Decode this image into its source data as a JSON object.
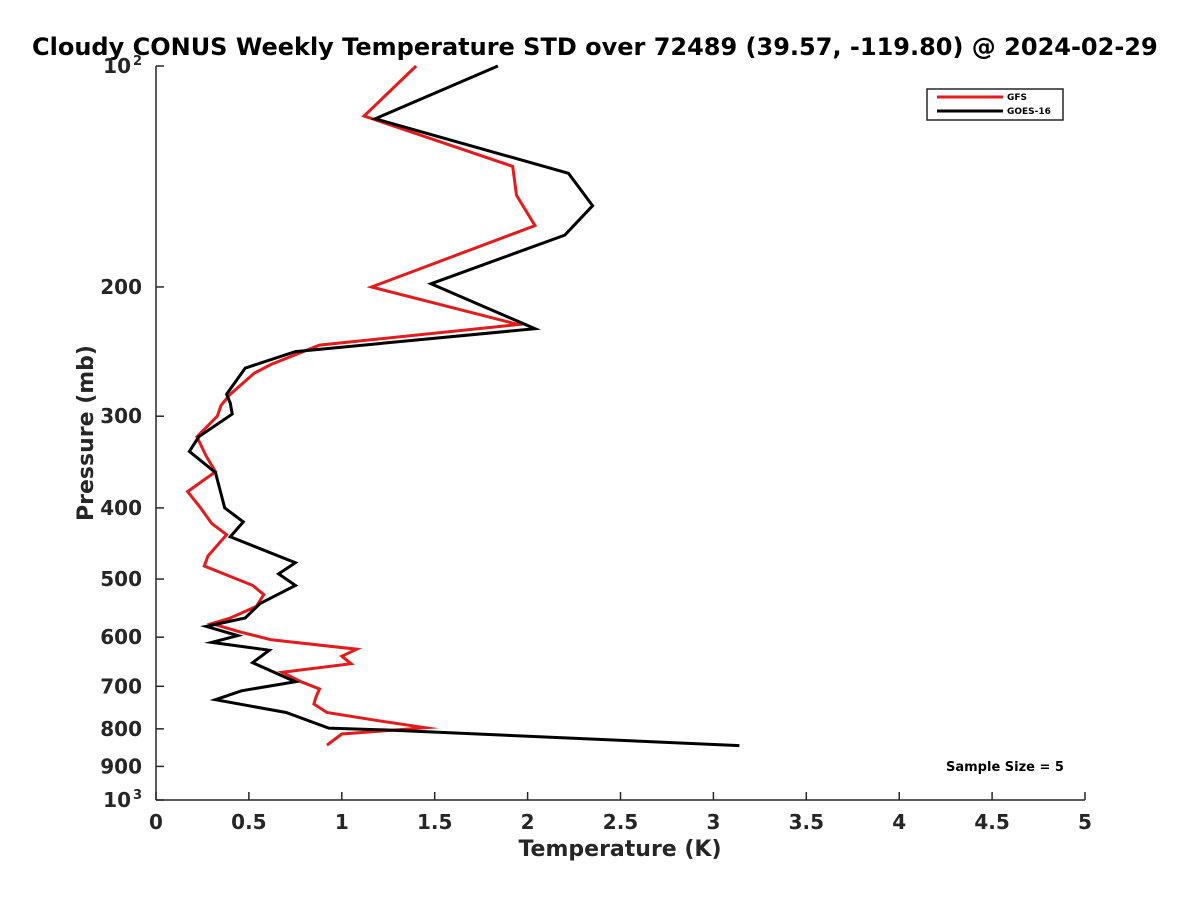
{
  "chart_data": {
    "type": "line",
    "title": "Cloudy CONUS Weekly Temperature STD over 72489 (39.57, -119.80) @ 2024-02-29",
    "xlabel": "Temperature (K)",
    "ylabel": "Pressure (mb)",
    "xlim": [
      0,
      5
    ],
    "ylim": [
      100,
      1000
    ],
    "y_scale": "log",
    "y_direction": "reversed",
    "grid": false,
    "legend_position": "top-right",
    "annotation": "Sample Size = 5",
    "x_ticks": [
      {
        "value": 0,
        "label": "0"
      },
      {
        "value": 0.5,
        "label": "0.5"
      },
      {
        "value": 1,
        "label": "1"
      },
      {
        "value": 1.5,
        "label": "1.5"
      },
      {
        "value": 2,
        "label": "2"
      },
      {
        "value": 2.5,
        "label": "2.5"
      },
      {
        "value": 3,
        "label": "3"
      },
      {
        "value": 3.5,
        "label": "3.5"
      },
      {
        "value": 4,
        "label": "4"
      },
      {
        "value": 4.5,
        "label": "4.5"
      },
      {
        "value": 5,
        "label": "5"
      }
    ],
    "y_ticks": [
      {
        "value": 100,
        "label": "10",
        "exponent": "2"
      },
      {
        "value": 200,
        "label": "200"
      },
      {
        "value": 300,
        "label": "300"
      },
      {
        "value": 400,
        "label": "400"
      },
      {
        "value": 500,
        "label": "500"
      },
      {
        "value": 600,
        "label": "600"
      },
      {
        "value": 700,
        "label": "700"
      },
      {
        "value": 800,
        "label": "800"
      },
      {
        "value": 900,
        "label": "900"
      },
      {
        "value": 1000,
        "label": "10",
        "exponent": "3"
      }
    ],
    "series": [
      {
        "name": "GFS",
        "color": "#e41a1c",
        "points": [
          [
            1.4,
            100
          ],
          [
            1.12,
            117
          ],
          [
            1.92,
            137
          ],
          [
            1.94,
            150
          ],
          [
            2.04,
            165
          ],
          [
            1.16,
            200
          ],
          [
            1.95,
            225
          ],
          [
            0.88,
            240
          ],
          [
            0.62,
            255
          ],
          [
            0.53,
            262
          ],
          [
            0.4,
            280
          ],
          [
            0.35,
            290
          ],
          [
            0.33,
            300
          ],
          [
            0.22,
            320
          ],
          [
            0.27,
            340
          ],
          [
            0.32,
            357
          ],
          [
            0.17,
            380
          ],
          [
            0.24,
            400
          ],
          [
            0.3,
            420
          ],
          [
            0.38,
            435
          ],
          [
            0.28,
            465
          ],
          [
            0.26,
            480
          ],
          [
            0.52,
            510
          ],
          [
            0.58,
            525
          ],
          [
            0.54,
            545
          ],
          [
            0.4,
            565
          ],
          [
            0.3,
            575
          ],
          [
            0.45,
            590
          ],
          [
            0.62,
            605
          ],
          [
            1.08,
            623
          ],
          [
            1.0,
            637
          ],
          [
            1.05,
            652
          ],
          [
            0.68,
            670
          ],
          [
            0.78,
            690
          ],
          [
            0.88,
            706
          ],
          [
            0.86,
            725
          ],
          [
            0.85,
            740
          ],
          [
            0.92,
            760
          ],
          [
            1.2,
            780
          ],
          [
            1.45,
            797
          ],
          [
            1.0,
            813
          ],
          [
            0.92,
            842
          ]
        ]
      },
      {
        "name": "GOES-16",
        "color": "#000000",
        "points": [
          [
            1.84,
            100
          ],
          [
            1.18,
            118
          ],
          [
            2.22,
            140
          ],
          [
            2.35,
            155
          ],
          [
            2.2,
            170
          ],
          [
            1.48,
            198
          ],
          [
            2.04,
            228
          ],
          [
            0.75,
            245
          ],
          [
            0.48,
            258
          ],
          [
            0.38,
            280
          ],
          [
            0.4,
            288
          ],
          [
            0.41,
            298
          ],
          [
            0.23,
            320
          ],
          [
            0.18,
            335
          ],
          [
            0.32,
            358
          ],
          [
            0.37,
            400
          ],
          [
            0.47,
            418
          ],
          [
            0.4,
            438
          ],
          [
            0.75,
            475
          ],
          [
            0.66,
            492
          ],
          [
            0.75,
            510
          ],
          [
            0.56,
            540
          ],
          [
            0.48,
            565
          ],
          [
            0.27,
            580
          ],
          [
            0.44,
            597
          ],
          [
            0.3,
            610
          ],
          [
            0.61,
            625
          ],
          [
            0.52,
            650
          ],
          [
            0.75,
            690
          ],
          [
            0.46,
            710
          ],
          [
            0.32,
            730
          ],
          [
            0.7,
            760
          ],
          [
            0.93,
            798
          ],
          [
            1.26,
            803
          ],
          [
            3.14,
            843
          ]
        ]
      }
    ]
  }
}
